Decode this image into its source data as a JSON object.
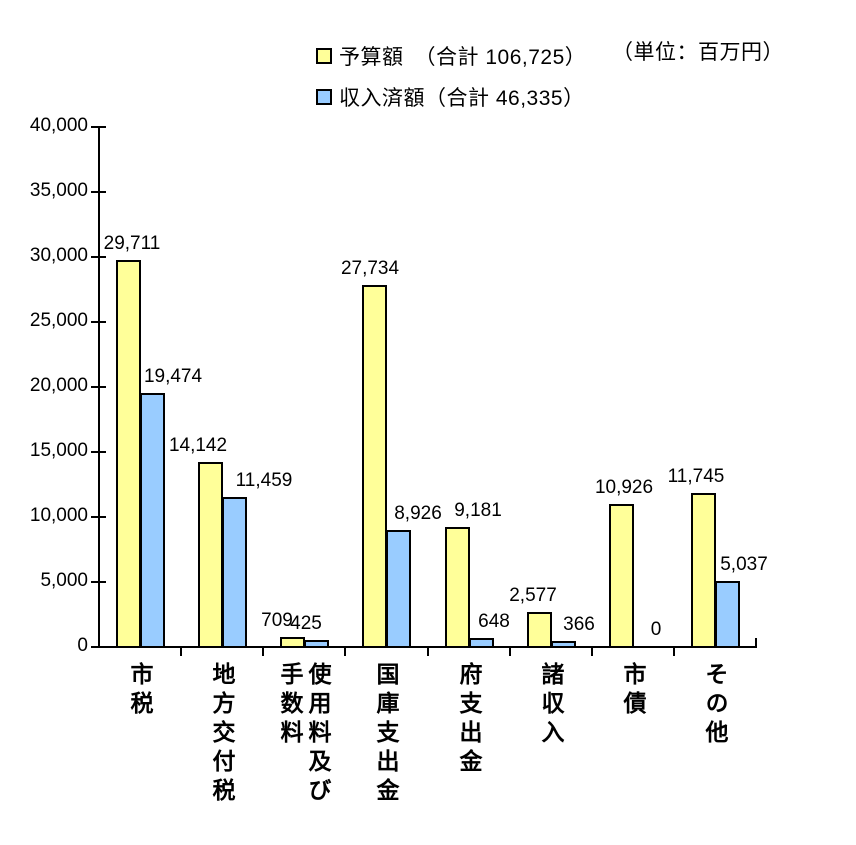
{
  "unit_label": "（単位：百万円）",
  "legend": [
    {
      "label": "予算額　（合計 106,725）",
      "color": "#FFFF99"
    },
    {
      "label": "収入済額（合計 46,335）",
      "color": "#99CCFF"
    }
  ],
  "chart_data": {
    "type": "bar",
    "unit": "百万円",
    "title": "",
    "xlabel": "",
    "ylabel": "",
    "categories": [
      "市税",
      "地方交付税",
      "使用料及び手数料",
      "国庫支出金",
      "府支出金",
      "諸収入",
      "市債",
      "その他"
    ],
    "series": [
      {
        "name": "予算額",
        "total": 106725,
        "color": "#FFFF99",
        "values": [
          29711,
          14142,
          709,
          27734,
          9181,
          2577,
          10926,
          11745
        ],
        "labels": [
          "29,711",
          "14,142",
          "709",
          "27,734",
          "9,181",
          "2,577",
          "10,926",
          "11,745"
        ],
        "label_dx": [
          4,
          -12,
          -15,
          -4,
          21,
          -6,
          3,
          -7
        ]
      },
      {
        "name": "収入済額",
        "total": 46335,
        "color": "#99CCFF",
        "values": [
          19474,
          11459,
          425,
          8926,
          648,
          366,
          0,
          5037
        ],
        "labels": [
          "19,474",
          "11,459",
          "425",
          "8,926",
          "648",
          "366",
          "0",
          "5,037"
        ],
        "label_dx": [
          21,
          30,
          -10,
          20,
          13,
          16,
          11,
          17
        ]
      }
    ],
    "ylim": [
      0,
      40000
    ],
    "ytick_interval": 5000,
    "ytick_labels": [
      "0",
      "5,000",
      "10,000",
      "15,000",
      "20,000",
      "25,000",
      "30,000",
      "35,000",
      "40,000"
    ],
    "grid": false,
    "legend_position": "top"
  }
}
